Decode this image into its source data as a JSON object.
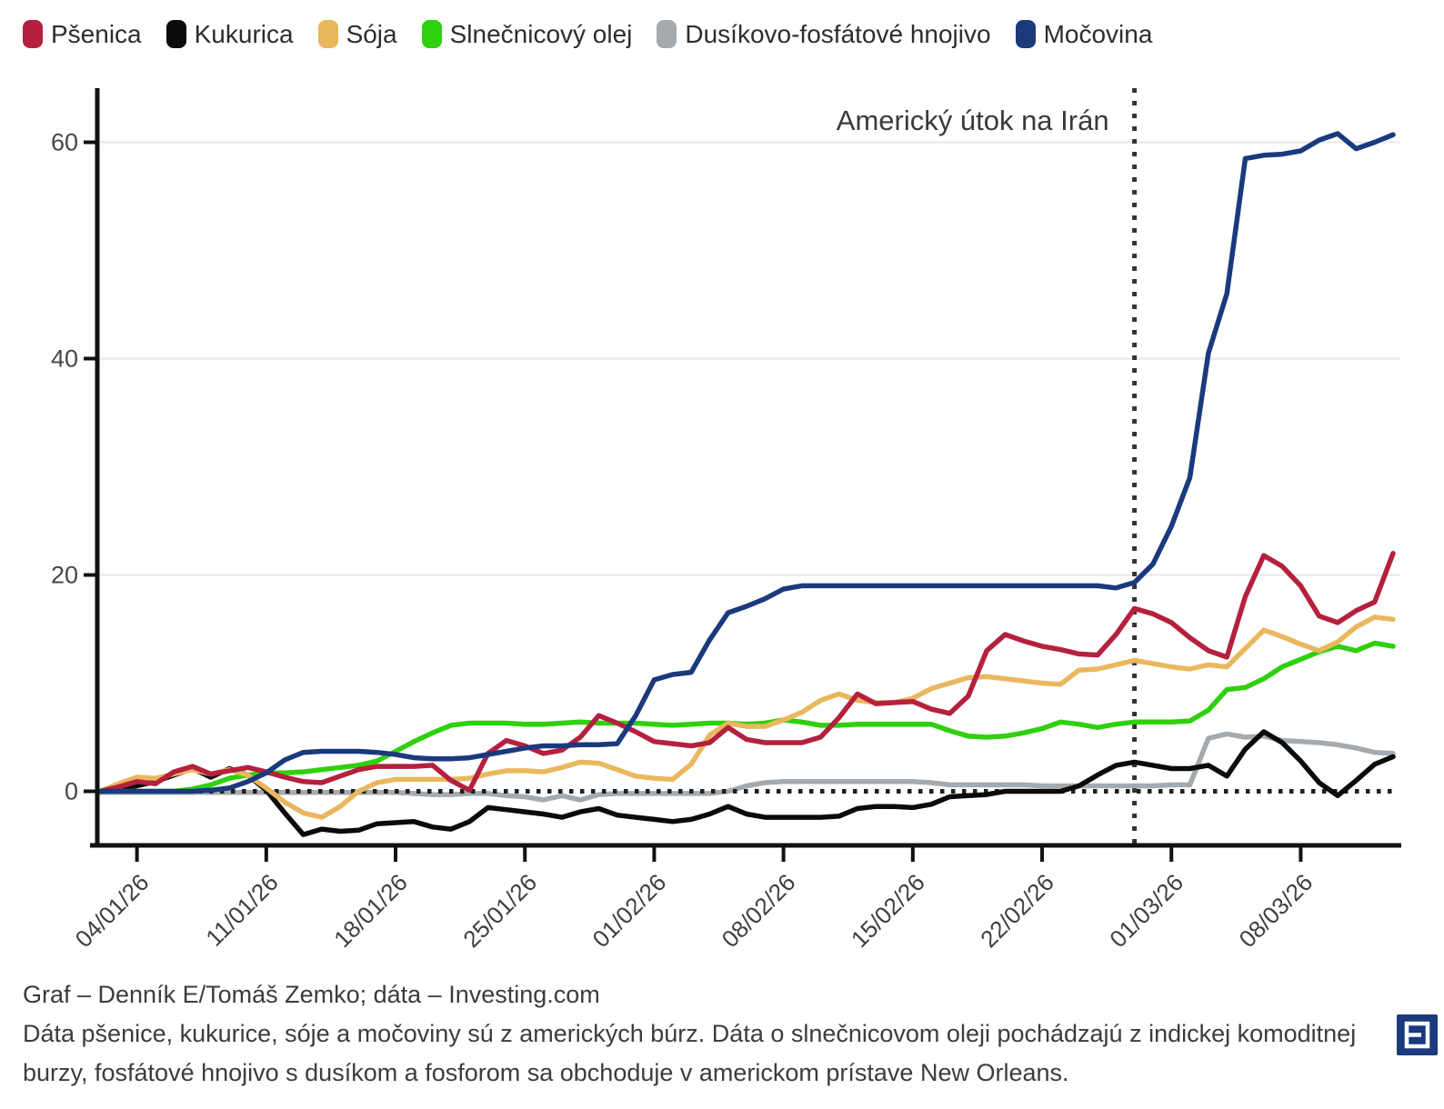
{
  "chart_data": {
    "type": "line",
    "title": "",
    "xlabel": "",
    "ylabel": "",
    "grid": "horizontal",
    "legend_position": "top",
    "ylim": [
      -5,
      65
    ],
    "y_ticks": [
      0,
      20,
      40,
      60
    ],
    "x_tick_labels": [
      "04/01/26",
      "11/01/26",
      "18/01/26",
      "25/01/26",
      "01/02/26",
      "08/02/26",
      "15/02/26",
      "22/02/26",
      "01/03/26",
      "08/03/26"
    ],
    "x_tick_days": [
      2,
      9,
      16,
      23,
      30,
      37,
      44,
      51,
      58,
      65
    ],
    "days_total": 70,
    "x_start_date": "02/01/26",
    "zero_line": true,
    "annotation": {
      "label": "Americký útok na Irán",
      "day": 56
    },
    "series": [
      {
        "name": "Pšenica",
        "color": "#b5203f",
        "values": [
          0,
          0.4,
          0.9,
          0.7,
          1.8,
          2.3,
          1.6,
          1.9,
          2.2,
          1.8,
          1.3,
          0.9,
          0.8,
          1.4,
          2.0,
          2.3,
          2.3,
          2.3,
          2.4,
          1.0,
          0.1,
          3.5,
          4.7,
          4.2,
          3.5,
          3.8,
          5.0,
          7.0,
          6.3,
          5.5,
          4.6,
          4.4,
          4.2,
          4.5,
          5.9,
          4.8,
          4.5,
          4.5,
          4.5,
          5.0,
          6.8,
          9.0,
          8.1,
          8.2,
          8.3,
          7.6,
          7.2,
          8.8,
          13.0,
          14.5,
          13.9,
          13.4,
          13.1,
          12.7,
          12.6,
          14.5,
          16.9,
          16.4,
          15.6,
          14.2,
          13.0,
          12.4,
          18.0,
          21.8,
          20.8,
          19.0,
          16.2,
          15.6,
          16.7,
          17.5,
          22.0
        ]
      },
      {
        "name": "Kukurica",
        "color": "#0b0b0b",
        "values": [
          0,
          0.2,
          0.5,
          0.9,
          1.5,
          2.1,
          1.3,
          2.1,
          1.5,
          0.1,
          -2.0,
          -4.0,
          -3.5,
          -3.7,
          -3.6,
          -3.0,
          -2.9,
          -2.8,
          -3.3,
          -3.5,
          -2.8,
          -1.5,
          -1.7,
          -1.9,
          -2.1,
          -2.4,
          -1.9,
          -1.6,
          -2.2,
          -2.4,
          -2.6,
          -2.8,
          -2.6,
          -2.1,
          -1.4,
          -2.1,
          -2.4,
          -2.4,
          -2.4,
          -2.4,
          -2.3,
          -1.6,
          -1.4,
          -1.4,
          -1.5,
          -1.2,
          -0.5,
          -0.4,
          -0.3,
          0.0,
          0.0,
          0.0,
          0.0,
          0.5,
          1.5,
          2.4,
          2.7,
          2.4,
          2.1,
          2.1,
          2.4,
          1.4,
          3.9,
          5.5,
          4.5,
          2.8,
          0.8,
          -0.4,
          1.0,
          2.5,
          3.2
        ]
      },
      {
        "name": "Sója",
        "color": "#e9b75e",
        "values": [
          0,
          0.7,
          1.3,
          1.2,
          1.6,
          2.0,
          1.6,
          2.0,
          1.5,
          0.3,
          -1.0,
          -2.0,
          -2.4,
          -1.4,
          0.0,
          0.8,
          1.1,
          1.1,
          1.1,
          1.1,
          1.2,
          1.6,
          1.9,
          1.9,
          1.8,
          2.2,
          2.7,
          2.6,
          2.0,
          1.4,
          1.2,
          1.1,
          2.5,
          5.2,
          6.3,
          6.0,
          6.0,
          6.6,
          7.3,
          8.4,
          9.0,
          8.4,
          8.2,
          8.2,
          8.6,
          9.5,
          10.0,
          10.5,
          10.6,
          10.4,
          10.2,
          10.0,
          9.9,
          11.2,
          11.3,
          11.7,
          12.1,
          11.8,
          11.5,
          11.3,
          11.7,
          11.5,
          13.2,
          14.9,
          14.3,
          13.6,
          13.0,
          13.8,
          15.2,
          16.1,
          15.9
        ]
      },
      {
        "name": "Slnečnicový olej",
        "color": "#2fd00d",
        "values": [
          0,
          0,
          0,
          0,
          0,
          0.2,
          0.6,
          1.2,
          1.5,
          1.7,
          1.7,
          1.8,
          2.0,
          2.2,
          2.4,
          2.8,
          3.7,
          4.6,
          5.4,
          6.1,
          6.3,
          6.3,
          6.3,
          6.2,
          6.2,
          6.3,
          6.4,
          6.3,
          6.3,
          6.3,
          6.2,
          6.1,
          6.2,
          6.3,
          6.3,
          6.2,
          6.3,
          6.6,
          6.4,
          6.1,
          6.1,
          6.2,
          6.2,
          6.2,
          6.2,
          6.2,
          5.6,
          5.1,
          5.0,
          5.1,
          5.4,
          5.8,
          6.4,
          6.2,
          5.9,
          6.2,
          6.4,
          6.4,
          6.4,
          6.5,
          7.5,
          9.4,
          9.6,
          10.4,
          11.5,
          12.2,
          12.9,
          13.4,
          13.0,
          13.7,
          13.4
        ]
      },
      {
        "name": "Dusíkovo-fosfátové hnojivo",
        "color": "#a5aaaf",
        "values": [
          -0.1,
          -0.1,
          -0.1,
          -0.1,
          -0.1,
          -0.1,
          -0.1,
          -0.1,
          -0.1,
          -0.1,
          -0.1,
          -0.1,
          -0.1,
          -0.1,
          -0.1,
          -0.1,
          -0.1,
          -0.2,
          -0.3,
          -0.3,
          -0.2,
          -0.2,
          -0.4,
          -0.5,
          -0.8,
          -0.4,
          -0.8,
          -0.3,
          -0.2,
          -0.2,
          -0.2,
          -0.2,
          -0.2,
          -0.2,
          0.0,
          0.5,
          0.8,
          0.9,
          0.9,
          0.9,
          0.9,
          0.9,
          0.9,
          0.9,
          0.9,
          0.8,
          0.6,
          0.6,
          0.6,
          0.6,
          0.6,
          0.5,
          0.5,
          0.5,
          0.5,
          0.5,
          0.5,
          0.5,
          0.6,
          0.6,
          4.9,
          5.3,
          5.0,
          5.1,
          4.7,
          4.6,
          4.5,
          4.3,
          4.0,
          3.6,
          3.5
        ]
      },
      {
        "name": "Močovina",
        "color": "#1a3a7d",
        "values": [
          0,
          0,
          0,
          0,
          0,
          0,
          0.1,
          0.3,
          0.9,
          1.7,
          2.9,
          3.6,
          3.7,
          3.7,
          3.7,
          3.6,
          3.4,
          3.1,
          3.0,
          3.0,
          3.1,
          3.4,
          3.7,
          4.0,
          4.2,
          4.2,
          4.3,
          4.3,
          4.4,
          7.0,
          10.3,
          10.8,
          11.0,
          14.0,
          16.5,
          17.1,
          17.8,
          18.7,
          19.0,
          19.0,
          19.0,
          19.0,
          19.0,
          19.0,
          19.0,
          19.0,
          19.0,
          19.0,
          19.0,
          19.0,
          19.0,
          19.0,
          19.0,
          19.0,
          19.0,
          18.8,
          19.3,
          21.0,
          24.5,
          29.0,
          40.5,
          46.0,
          58.5,
          58.8,
          58.9,
          59.2,
          60.2,
          60.8,
          59.4,
          60.0,
          60.7
        ]
      }
    ]
  },
  "footer": {
    "credit": "Graf – Denník E/Tomáš Zemko; dáta – Investing.com",
    "note": "Dáta pšenice, kukurice, sóje a močoviny sú z amerických búrz. Dáta o slnečnicovom oleji pochádzajú z indickej komoditnej burzy, fosfátové hnojivo s dusíkom a fosforom sa obchoduje v americkom prístave New Orleans.",
    "logo_letter": "E",
    "logo_color": "#1a3a7d"
  },
  "style": {
    "axis_color": "#111111",
    "grid_color": "#ececec",
    "zero_line_color": "#1f1f1f",
    "event_line_color": "#333333",
    "tick_label_color": "#474747",
    "annotation_color": "#3a3a3a"
  }
}
